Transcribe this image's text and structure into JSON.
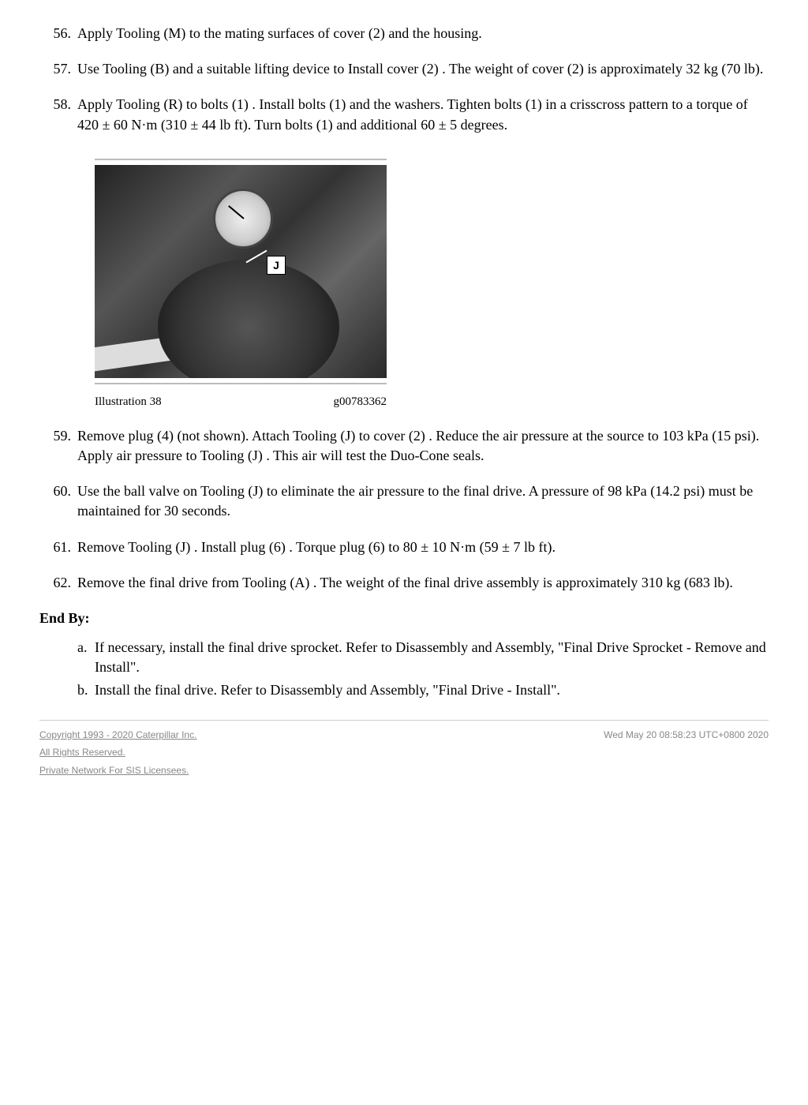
{
  "steps": [
    {
      "n": "56.",
      "text": "Apply Tooling (M) to the mating surfaces of cover (2) and the housing."
    },
    {
      "n": "57.",
      "text": "Use Tooling (B) and a suitable lifting device to Install cover (2) . The weight of cover (2) is approximately 32 kg (70 lb)."
    },
    {
      "n": "58.",
      "text": "Apply Tooling (R) to bolts (1) . Install bolts (1) and the washers. Tighten bolts (1) in a crisscross pattern to a torque of 420 ± 60 N·m (310 ± 44 lb ft). Turn bolts (1) and additional 60 ± 5 degrees."
    }
  ],
  "figure": {
    "label_j": "J",
    "caption_left": "Illustration 38",
    "caption_right": "g00783362"
  },
  "steps2": [
    {
      "n": "59.",
      "text": "Remove plug (4) (not shown). Attach Tooling (J) to cover (2) . Reduce the air pressure at the source to 103 kPa (15 psi). Apply air pressure to Tooling (J) . This air will test the Duo-Cone seals."
    },
    {
      "n": "60.",
      "text": "Use the ball valve on Tooling (J) to eliminate the air pressure to the final drive. A pressure of 98 kPa (14.2 psi) must be maintained for 30 seconds."
    },
    {
      "n": "61.",
      "text": "Remove Tooling (J) . Install plug (6) . Torque plug (6) to 80 ± 10 N·m (59 ± 7 lb ft)."
    },
    {
      "n": "62.",
      "text": "Remove the final drive from Tooling (A) . The weight of the final drive assembly is approximately 310 kg (683 lb)."
    }
  ],
  "end_by_label": "End By:",
  "end_by": [
    {
      "n": "a.",
      "text": "If necessary, install the final drive sprocket. Refer to Disassembly and Assembly, \"Final Drive Sprocket - Remove and Install\"."
    },
    {
      "n": "b.",
      "text": "Install the final drive. Refer to Disassembly and Assembly, \"Final Drive - Install\"."
    }
  ],
  "footer": {
    "copyright": "Copyright 1993 - 2020 Caterpillar Inc.",
    "rights": "All Rights Reserved.",
    "network": "Private Network For SIS Licensees.",
    "timestamp": "Wed May 20 08:58:23 UTC+0800 2020"
  }
}
